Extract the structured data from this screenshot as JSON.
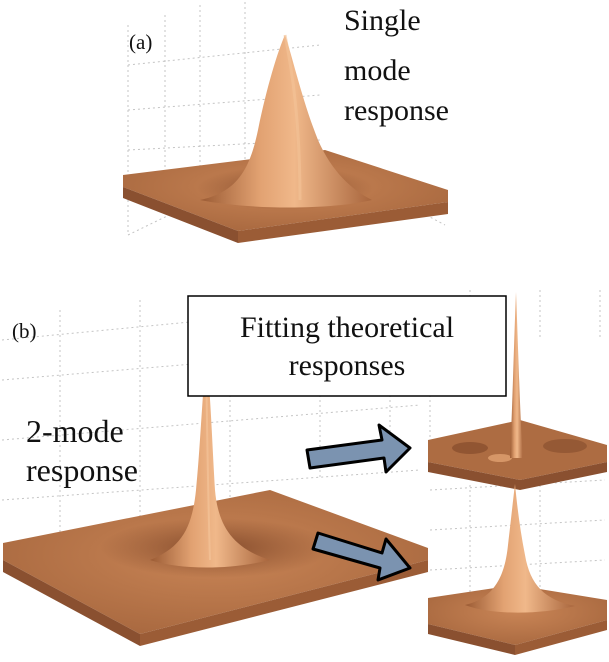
{
  "panel_a": {
    "label": "(a)",
    "caption_lines": [
      "Single",
      "mode",
      "response"
    ]
  },
  "panel_b": {
    "label": "(b)",
    "fit_box_lines": [
      "Fitting theoretical",
      "responses"
    ],
    "caption_lines": [
      "2-mode",
      "response"
    ]
  },
  "colors": {
    "surface_base": "#b7754a",
    "surface_light": "#e7a877",
    "surface_dark": "#8a5030",
    "arrow_fill": "#7b93b0",
    "arrow_stroke": "#000000"
  }
}
